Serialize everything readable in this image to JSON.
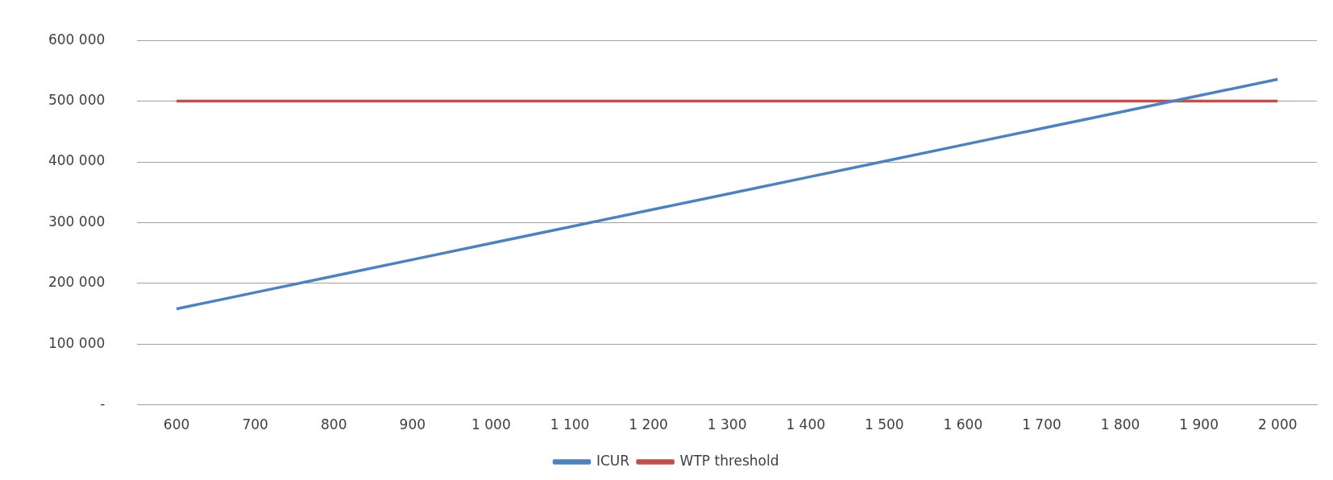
{
  "chart_data": {
    "type": "line",
    "categories": [
      "600",
      "700",
      "800",
      "900",
      "1 000",
      "1 100",
      "1 200",
      "1 300",
      "1 400",
      "1 500",
      "1 600",
      "1 700",
      "1 800",
      "1 900",
      "2 000"
    ],
    "series": [
      {
        "name": "ICUR",
        "color": "#4f81bd",
        "values": [
          158000,
          185000,
          212000,
          239000,
          266000,
          293000,
          320000,
          347000,
          374000,
          401000,
          428000,
          455000,
          482000,
          509000,
          536000
        ]
      },
      {
        "name": "WTP threshold",
        "color": "#c0504d",
        "values": [
          500000,
          500000,
          500000,
          500000,
          500000,
          500000,
          500000,
          500000,
          500000,
          500000,
          500000,
          500000,
          500000,
          500000,
          500000
        ]
      }
    ],
    "ylim": [
      0,
      600000
    ],
    "yticks": [
      {
        "value": 0,
        "label": "-"
      },
      {
        "value": 100000,
        "label": "100 000"
      },
      {
        "value": 200000,
        "label": "200 000"
      },
      {
        "value": 300000,
        "label": "300 000"
      },
      {
        "value": 400000,
        "label": "400 000"
      },
      {
        "value": 500000,
        "label": "500 000"
      },
      {
        "value": 600000,
        "label": "600 000"
      }
    ],
    "grid": "y",
    "legend": "bottom",
    "marker": "none",
    "line_style": "solid"
  }
}
